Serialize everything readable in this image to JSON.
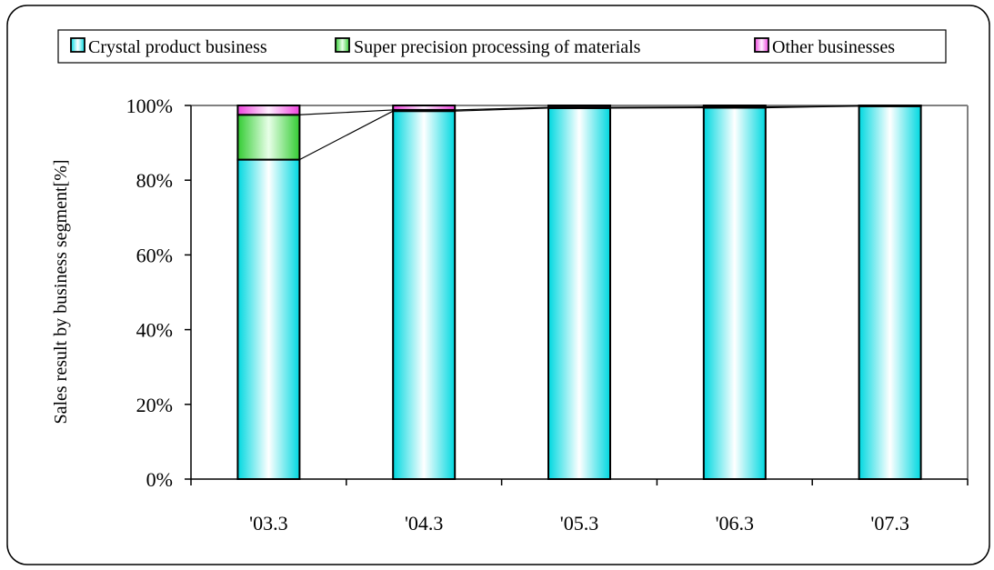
{
  "colors": {
    "crystal_edge": "#00d8e0",
    "crystal_mid": "#ffffff",
    "super_edge": "#33cc33",
    "super_mid": "#e8ffe8",
    "other_edge": "#ee44dd",
    "other_mid": "#fff0ff",
    "plot_background": "#ffffff",
    "frame": "#000000",
    "gridline": "#808080"
  },
  "chart_data": {
    "type": "bar",
    "stacked": true,
    "categories": [
      "'03.3",
      "'04.3",
      "'05.3",
      "'06.3",
      "'07.3"
    ],
    "series": [
      {
        "name": "Crystal product business",
        "values": [
          85.5,
          98.5,
          99.3,
          99.4,
          99.8
        ]
      },
      {
        "name": "Super precision processing of materials",
        "values": [
          12.0,
          0.3,
          0.2,
          0.2,
          0.1
        ]
      },
      {
        "name": "Other businesses",
        "values": [
          2.5,
          1.2,
          0.5,
          0.4,
          0.1
        ]
      }
    ],
    "title": "",
    "xlabel": "",
    "ylabel": "Sales result by business segment[%]",
    "ylim": [
      0,
      100
    ],
    "yticks": [
      "0%",
      "20%",
      "40%",
      "60%",
      "80%",
      "100%"
    ],
    "grid": false,
    "series_lines": true,
    "legend_position": "top"
  }
}
